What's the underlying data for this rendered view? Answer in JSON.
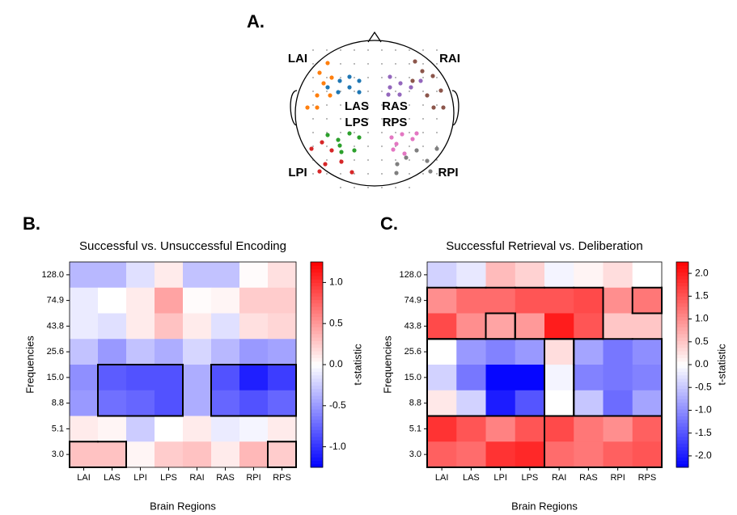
{
  "head": {
    "panel_label": "A.",
    "regions": [
      {
        "name": "LAI",
        "color": "#ff7f0e"
      },
      {
        "name": "LAS",
        "color": "#1f77b4"
      },
      {
        "name": "LPI",
        "color": "#d62728"
      },
      {
        "name": "LPS",
        "color": "#2ca02c"
      },
      {
        "name": "RAI",
        "color": "#8c564b"
      },
      {
        "name": "RAS",
        "color": "#9467bd"
      },
      {
        "name": "RPI",
        "color": "#7f7f7f"
      },
      {
        "name": "RPS",
        "color": "#e377c2"
      }
    ]
  },
  "chart_data": [
    {
      "type": "heatmap",
      "panel_label": "B.",
      "title": "Successful vs. Unsuccessful Encoding",
      "x_label": "Brain Regions",
      "y_label": "Frequencies",
      "colorbar_label": "t-statistic",
      "colormap": "bwr",
      "x_categories": [
        "LAI",
        "LAS",
        "LPI",
        "LPS",
        "RAI",
        "RAS",
        "RPI",
        "RPS"
      ],
      "y_categories": [
        "128.0",
        "74.9",
        "43.8",
        "25.6",
        "15.0",
        "8.8",
        "5.1",
        "3.0"
      ],
      "values": [
        [
          -0.35,
          -0.35,
          -0.15,
          0.1,
          -0.3,
          -0.3,
          0.02,
          0.15
        ],
        [
          -0.1,
          0.0,
          0.1,
          0.45,
          0.02,
          0.05,
          0.25,
          0.25
        ],
        [
          -0.1,
          -0.15,
          0.1,
          0.3,
          0.1,
          -0.15,
          0.15,
          0.2
        ],
        [
          -0.3,
          -0.5,
          -0.3,
          -0.4,
          -0.2,
          -0.35,
          -0.5,
          -0.45
        ],
        [
          -0.55,
          -0.8,
          -0.85,
          -0.85,
          -0.4,
          -0.85,
          -1.1,
          -0.95
        ],
        [
          -0.5,
          -0.7,
          -0.75,
          -0.85,
          -0.4,
          -0.75,
          -0.85,
          -0.75
        ],
        [
          0.1,
          0.05,
          -0.25,
          0.0,
          0.1,
          -0.1,
          -0.05,
          0.1
        ],
        [
          0.3,
          0.3,
          0.05,
          0.25,
          0.3,
          0.1,
          0.35,
          0.25
        ]
      ],
      "clusters": [
        [
          0,
          0,
          0,
          0,
          0,
          0,
          0,
          0
        ],
        [
          0,
          0,
          0,
          0,
          0,
          0,
          0,
          0
        ],
        [
          0,
          0,
          0,
          0,
          0,
          0,
          0,
          0
        ],
        [
          0,
          0,
          0,
          0,
          0,
          0,
          0,
          0
        ],
        [
          0,
          3,
          3,
          3,
          0,
          4,
          4,
          4
        ],
        [
          0,
          3,
          3,
          3,
          0,
          4,
          4,
          4
        ],
        [
          0,
          0,
          0,
          0,
          0,
          0,
          0,
          0
        ],
        [
          1,
          1,
          0,
          0,
          0,
          0,
          0,
          2
        ]
      ],
      "zlim": [
        -1.25,
        1.25
      ],
      "zticks": [
        {
          "value": -1.0,
          "label": "-1.0"
        },
        -0.5,
        {
          "value": 0,
          "label": "0.0"
        },
        0.5,
        {
          "value": 1.0,
          "label": "1.0"
        }
      ]
    },
    {
      "type": "heatmap",
      "panel_label": "C.",
      "title": "Successful Retrieval vs. Deliberation",
      "x_label": "Brain Regions",
      "y_label": "Frequencies",
      "colorbar_label": "t-statistic",
      "colormap": "bwr",
      "x_categories": [
        "LAI",
        "LAS",
        "LPI",
        "LPS",
        "RAI",
        "RAS",
        "RPI",
        "RPS"
      ],
      "y_categories": [
        "128.0",
        "74.9",
        "43.8",
        "25.6",
        "15.0",
        "8.8",
        "5.1",
        "3.0"
      ],
      "values": [
        [
          -0.4,
          -0.2,
          0.6,
          0.4,
          -0.1,
          0.1,
          0.3,
          0.0
        ],
        [
          1.0,
          1.3,
          1.3,
          1.5,
          1.5,
          1.6,
          1.0,
          1.2
        ],
        [
          1.6,
          1.0,
          0.8,
          0.9,
          2.0,
          1.5,
          0.5,
          0.5
        ],
        [
          0.0,
          -0.9,
          -1.1,
          -0.9,
          0.3,
          -0.8,
          -1.2,
          -1.0
        ],
        [
          -0.4,
          -1.2,
          -2.2,
          -2.2,
          -0.1,
          -1.1,
          -1.2,
          -1.1
        ],
        [
          0.2,
          -0.4,
          -2.0,
          -1.5,
          0.0,
          -0.5,
          -1.3,
          -0.8
        ],
        [
          1.8,
          1.5,
          1.1,
          1.5,
          1.6,
          1.2,
          1.0,
          1.4
        ],
        [
          1.4,
          1.3,
          1.8,
          1.9,
          1.3,
          1.2,
          1.4,
          1.5
        ]
      ],
      "clusters": [
        [
          0,
          0,
          0,
          0,
          0,
          0,
          0,
          0
        ],
        [
          1,
          1,
          1,
          1,
          1,
          1,
          0,
          3
        ],
        [
          1,
          1,
          2,
          1,
          1,
          1,
          0,
          0
        ],
        [
          4,
          4,
          4,
          4,
          5,
          6,
          6,
          6
        ],
        [
          4,
          4,
          4,
          4,
          5,
          6,
          6,
          6
        ],
        [
          4,
          4,
          4,
          4,
          5,
          6,
          6,
          6
        ],
        [
          7,
          7,
          7,
          7,
          8,
          8,
          8,
          8
        ],
        [
          7,
          7,
          7,
          7,
          8,
          8,
          8,
          8
        ]
      ],
      "zlim": [
        -2.25,
        2.25
      ],
      "zticks": [
        {
          "value": -2.0,
          "label": "-2.0"
        },
        -1.5,
        {
          "value": -1.0,
          "label": "-1.0"
        },
        -0.5,
        {
          "value": 0,
          "label": "0.0"
        },
        0.5,
        {
          "value": 1.0,
          "label": "1.0"
        },
        1.5,
        {
          "value": 2.0,
          "label": "2.0"
        }
      ]
    }
  ]
}
